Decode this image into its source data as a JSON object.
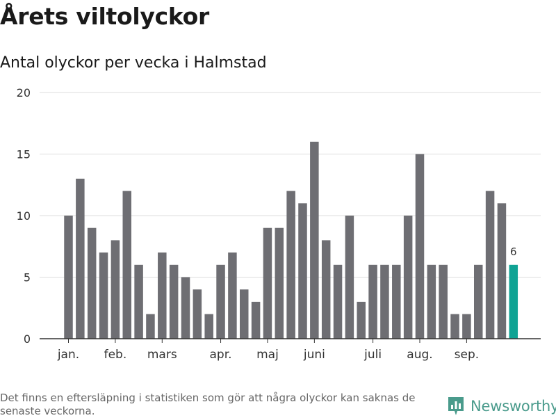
{
  "header": {
    "title": "Årets viltolyckor",
    "subtitle": "Antal olyckor per vecka i Halmstad"
  },
  "footer": {
    "note": "Det finns en eftersläpning i statistiken som gör att några olyckor kan saknas de senaste veckorna.",
    "brand": "Newsworthy"
  },
  "colors": {
    "bar": "#6e6e73",
    "highlight": "#0fa394",
    "grid": "#dddddd",
    "axis": "#333333",
    "brand": "#4a9b8c"
  },
  "chart_data": {
    "type": "bar",
    "title": "Årets viltolyckor",
    "subtitle": "Antal olyckor per vecka i Halmstad",
    "ylim": [
      0,
      20
    ],
    "yticks": [
      0,
      5,
      10,
      15,
      20
    ],
    "grid": true,
    "month_labels": [
      {
        "label": "jan.",
        "week": 1
      },
      {
        "label": "feb.",
        "week": 5
      },
      {
        "label": "mars",
        "week": 9
      },
      {
        "label": "apr.",
        "week": 14
      },
      {
        "label": "maj",
        "week": 18
      },
      {
        "label": "juni",
        "week": 22
      },
      {
        "label": "juli",
        "week": 27
      },
      {
        "label": "aug.",
        "week": 31
      },
      {
        "label": "sep.",
        "week": 35
      }
    ],
    "weeks": [
      1,
      2,
      3,
      4,
      5,
      6,
      7,
      8,
      9,
      10,
      11,
      12,
      13,
      14,
      15,
      16,
      17,
      18,
      19,
      20,
      21,
      22,
      23,
      24,
      25,
      26,
      27,
      28,
      29,
      30,
      31,
      32,
      33,
      34,
      35,
      36,
      37,
      38,
      39
    ],
    "values": [
      10,
      13,
      9,
      7,
      8,
      12,
      6,
      2,
      7,
      6,
      5,
      4,
      2,
      6,
      7,
      4,
      3,
      9,
      9,
      12,
      11,
      16,
      8,
      6,
      10,
      3,
      6,
      6,
      6,
      10,
      15,
      6,
      6,
      2,
      2,
      6,
      12,
      11,
      6
    ],
    "highlight_index": 38,
    "highlight_label": "6"
  }
}
